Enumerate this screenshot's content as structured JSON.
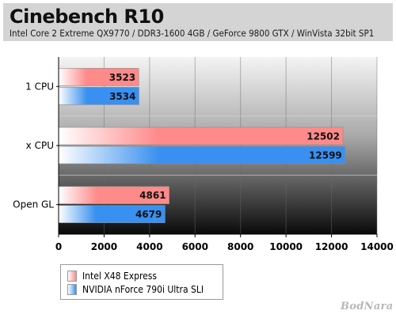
{
  "chart_data": {
    "type": "bar",
    "orientation": "horizontal",
    "title": "Cinebench R10",
    "subtitle": "Intel Core 2 Extreme QX9770 / DDR3-1600 4GB / GeForce 9800 GTX / WinVista 32bit SP1",
    "categories": [
      "1 CPU",
      "x CPU",
      "Open GL"
    ],
    "series": [
      {
        "name": "Intel X48 Express",
        "values": [
          3523,
          12502,
          4861
        ],
        "color": "#ff8a8a"
      },
      {
        "name": "NVIDIA nForce 790i Ultra SLI",
        "values": [
          3534,
          12599,
          4679
        ],
        "color": "#3a90f0"
      }
    ],
    "xlim": [
      0,
      14000
    ],
    "xticks": [
      "0",
      "2000",
      "4000",
      "6000",
      "8000",
      "10000",
      "12000",
      "14000"
    ],
    "xlabel": "",
    "ylabel": "",
    "grid": true,
    "legend_position": "bottom-left",
    "plot_background": "dark gradient"
  },
  "watermark": "BodNara"
}
